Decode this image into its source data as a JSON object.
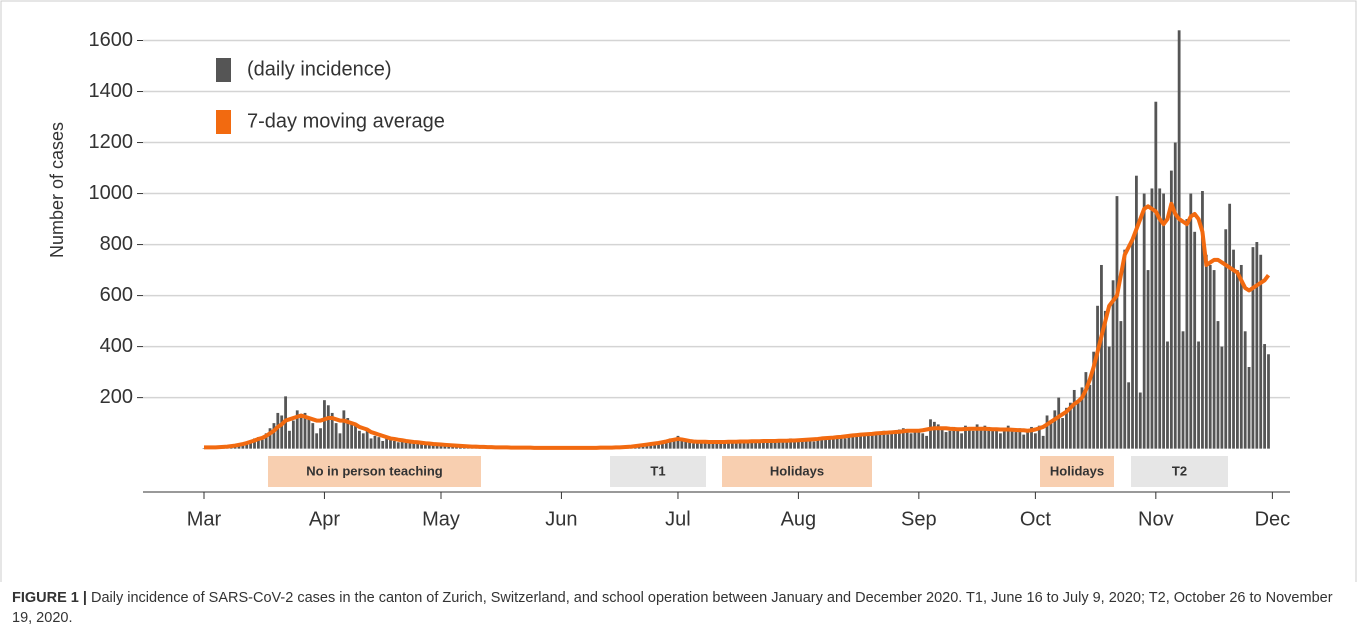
{
  "chart_data": {
    "type": "bar",
    "y_label": "Number of cases",
    "categories": [
      "Mar",
      null,
      null,
      null,
      null,
      null,
      null,
      null,
      null,
      null,
      null,
      null,
      null,
      null,
      null,
      null,
      null,
      null,
      null,
      null,
      null,
      null,
      null,
      null,
      null,
      null,
      null,
      null,
      null,
      null,
      null,
      "Apr",
      null,
      null,
      null,
      null,
      null,
      null,
      null,
      null,
      null,
      null,
      null,
      null,
      null,
      null,
      null,
      null,
      null,
      null,
      null,
      null,
      null,
      null,
      null,
      null,
      null,
      null,
      null,
      null,
      null,
      "May",
      null,
      null,
      null,
      null,
      null,
      null,
      null,
      null,
      null,
      null,
      null,
      null,
      null,
      null,
      null,
      null,
      null,
      null,
      null,
      null,
      null,
      null,
      null,
      null,
      null,
      null,
      null,
      null,
      null,
      null,
      "Jun",
      null,
      null,
      null,
      null,
      null,
      null,
      null,
      null,
      null,
      null,
      null,
      null,
      null,
      null,
      null,
      null,
      null,
      null,
      null,
      null,
      null,
      null,
      null,
      null,
      null,
      null,
      null,
      null,
      null,
      "Jul",
      null,
      null,
      null,
      null,
      null,
      null,
      null,
      null,
      null,
      null,
      null,
      null,
      null,
      null,
      null,
      null,
      null,
      null,
      null,
      null,
      null,
      null,
      null,
      null,
      null,
      null,
      null,
      null,
      null,
      null,
      "Aug",
      null,
      null,
      null,
      null,
      null,
      null,
      null,
      null,
      null,
      null,
      null,
      null,
      null,
      null,
      null,
      null,
      null,
      null,
      null,
      null,
      null,
      null,
      null,
      null,
      null,
      null,
      null,
      null,
      null,
      null,
      "Sep",
      null,
      null,
      null,
      null,
      null,
      null,
      null,
      null,
      null,
      null,
      null,
      null,
      null,
      null,
      null,
      null,
      null,
      null,
      null,
      null,
      null,
      null,
      null,
      null,
      null,
      null,
      null,
      null,
      null,
      "Oct",
      null,
      null,
      null,
      null,
      null,
      null,
      null,
      null,
      null,
      null,
      null,
      null,
      null,
      null,
      null,
      null,
      null,
      null,
      null,
      null,
      null,
      null,
      null,
      null,
      null,
      null,
      null,
      null,
      null,
      null,
      "Nov",
      null,
      null,
      null,
      null,
      null,
      null,
      null,
      null,
      null,
      null,
      null,
      null,
      null,
      null,
      null,
      null,
      null,
      null,
      null,
      null,
      null,
      null,
      null,
      null,
      null,
      null,
      null,
      null,
      null,
      "Dec"
    ],
    "series": [
      {
        "name": "(daily incidence)",
        "color": "#555555",
        "values": [
          2,
          3,
          2,
          4,
          5,
          6,
          8,
          10,
          12,
          15,
          20,
          25,
          30,
          40,
          45,
          35,
          60,
          80,
          100,
          140,
          130,
          205,
          70,
          110,
          150,
          130,
          140,
          120,
          100,
          60,
          80,
          190,
          170,
          140,
          100,
          60,
          150,
          120,
          100,
          90,
          70,
          60,
          80,
          40,
          50,
          45,
          30,
          40,
          35,
          30,
          25,
          35,
          30,
          25,
          20,
          25,
          20,
          15,
          22,
          18,
          15,
          12,
          15,
          10,
          8,
          12,
          10,
          8,
          6,
          5,
          8,
          6,
          5,
          4,
          6,
          5,
          3,
          4,
          5,
          4,
          3,
          5,
          4,
          3,
          4,
          3,
          2,
          4,
          3,
          2,
          3,
          2,
          2,
          3,
          2,
          4,
          3,
          2,
          3,
          4,
          3,
          2,
          3,
          4,
          5,
          4,
          3,
          2,
          5,
          6,
          8,
          10,
          12,
          10,
          15,
          18,
          20,
          20,
          25,
          30,
          40,
          35,
          50,
          40,
          30,
          25,
          20,
          28,
          30,
          25,
          22,
          28,
          30,
          25,
          20,
          22,
          25,
          30,
          28,
          32,
          25,
          30,
          28,
          35,
          30,
          25,
          30,
          32,
          35,
          28,
          30,
          40,
          35,
          30,
          35,
          40,
          32,
          28,
          35,
          45,
          40,
          38,
          42,
          50,
          45,
          40,
          48,
          55,
          60,
          50,
          55,
          62,
          58,
          65,
          60,
          70,
          55,
          65,
          68,
          75,
          80,
          70,
          60,
          65,
          70,
          60,
          50,
          115,
          105,
          95,
          80,
          65,
          70,
          85,
          75,
          60,
          90,
          80,
          70,
          95,
          75,
          90,
          85,
          70,
          80,
          60,
          70,
          90,
          75,
          65,
          80,
          55,
          70,
          85,
          60,
          90,
          50,
          130,
          100,
          150,
          200,
          120,
          160,
          180,
          230,
          180,
          240,
          300,
          250,
          380,
          560,
          720,
          540,
          400,
          660,
          990,
          500,
          780,
          260,
          820,
          1070,
          220,
          1000,
          700,
          1020,
          1360,
          1020,
          1000,
          420,
          1090,
          1200,
          1640,
          460,
          900,
          1000,
          850,
          420,
          1010,
          760,
          720,
          700,
          500,
          400,
          860,
          960,
          780,
          700,
          720,
          460,
          320,
          790,
          810,
          760,
          410,
          370,
          null
        ]
      },
      {
        "name": "7-day moving average",
        "type": "line",
        "color": "#f26a10",
        "values": [
          5,
          5,
          5,
          5,
          6,
          7,
          8,
          10,
          12,
          15,
          18,
          22,
          27,
          32,
          38,
          42,
          50,
          60,
          70,
          85,
          95,
          110,
          115,
          120,
          125,
          130,
          125,
          120,
          115,
          110,
          110,
          115,
          120,
          120,
          115,
          110,
          110,
          105,
          100,
          95,
          85,
          80,
          75,
          65,
          60,
          55,
          50,
          45,
          40,
          38,
          35,
          33,
          30,
          28,
          26,
          25,
          23,
          21,
          20,
          18,
          17,
          16,
          15,
          14,
          13,
          12,
          11,
          10,
          9,
          8,
          8,
          7,
          7,
          6,
          6,
          5,
          5,
          5,
          5,
          4,
          4,
          4,
          4,
          4,
          4,
          3,
          3,
          3,
          3,
          3,
          3,
          3,
          3,
          3,
          3,
          3,
          3,
          3,
          3,
          3,
          3,
          3,
          4,
          4,
          4,
          4,
          5,
          5,
          6,
          7,
          8,
          10,
          12,
          14,
          16,
          18,
          20,
          22,
          25,
          28,
          32,
          35,
          38,
          36,
          33,
          30,
          28,
          27,
          27,
          27,
          26,
          26,
          26,
          26,
          26,
          27,
          27,
          27,
          28,
          28,
          28,
          29,
          29,
          29,
          30,
          30,
          30,
          30,
          31,
          31,
          31,
          32,
          32,
          33,
          34,
          35,
          36,
          37,
          38,
          40,
          41,
          42,
          43,
          45,
          46,
          48,
          50,
          52,
          53,
          55,
          56,
          57,
          58,
          60,
          61,
          62,
          63,
          64,
          65,
          66,
          68,
          70,
          70,
          70,
          70,
          72,
          75,
          78,
          80,
          80,
          80,
          80,
          78,
          77,
          76,
          76,
          77,
          78,
          78,
          78,
          78,
          78,
          77,
          76,
          76,
          75,
          75,
          75,
          74,
          73,
          72,
          72,
          70,
          72,
          75,
          80,
          85,
          95,
          105,
          115,
          125,
          135,
          145,
          160,
          175,
          185,
          200,
          230,
          270,
          320,
          380,
          440,
          500,
          560,
          580,
          600,
          680,
          760,
          790,
          820,
          860,
          900,
          940,
          950,
          940,
          930,
          900,
          880,
          900,
          960,
          920,
          900,
          890,
          880,
          910,
          920,
          900,
          850,
          720,
          730,
          740,
          740,
          730,
          720,
          710,
          700,
          690,
          660,
          630,
          620,
          630,
          640,
          650,
          660,
          680,
          null
        ]
      }
    ],
    "ylim": [
      -170,
      1700
    ],
    "yticks": [
      200,
      400,
      600,
      800,
      1000,
      1200,
      1400,
      1600
    ],
    "grid": true,
    "legend": "top-left",
    "annotations": [
      "No in person teaching",
      "T1",
      "Holidays",
      "Holidays",
      "T2"
    ]
  },
  "caption": {
    "label": "FIGURE 1 |",
    "text": "Daily incidence of SARS-CoV-2 cases in the canton of Zurich, Switzerland, and school operation between January and December 2020. T1, June 16 to July 9, 2020; T2, October 26 to November 19, 2020."
  }
}
